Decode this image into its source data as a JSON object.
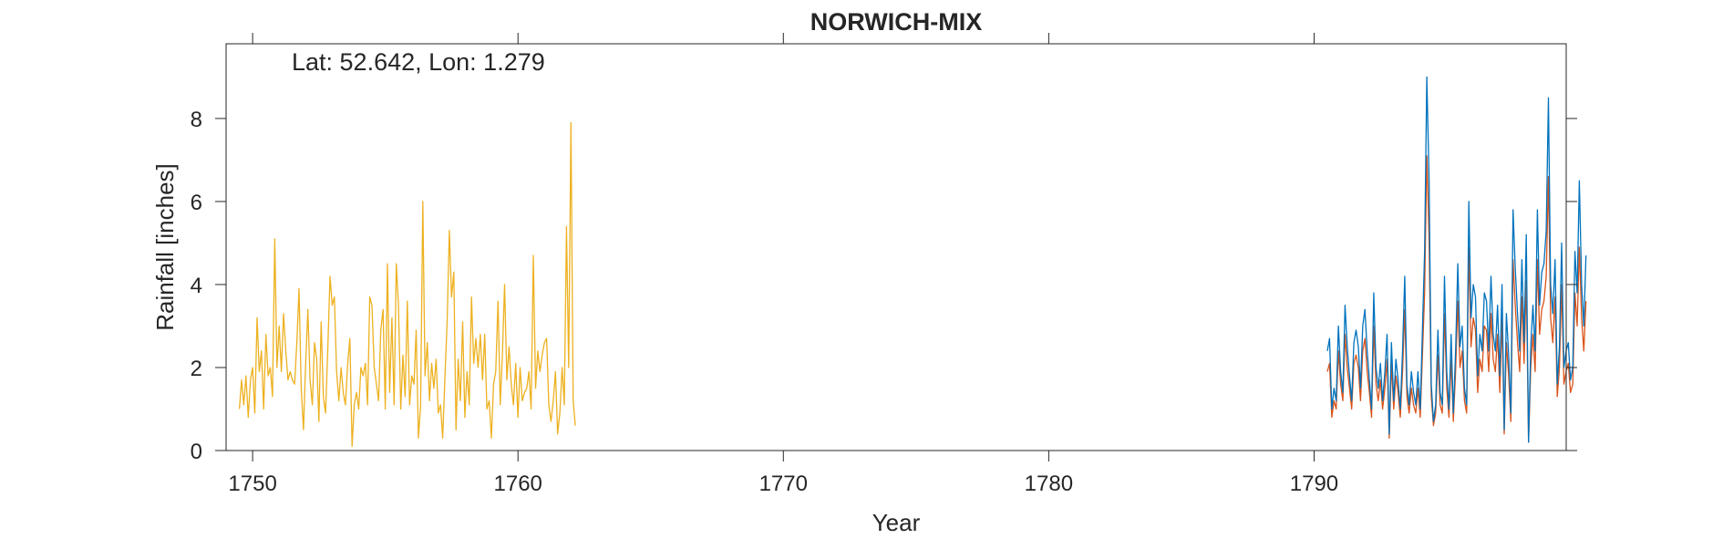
{
  "chart_data": {
    "type": "line",
    "title": "NORWICH-MIX",
    "xlabel": "Year",
    "ylabel": "Rainfall [inches]",
    "annotation": "Lat: 52.642, Lon: 1.279",
    "xlim": [
      1749,
      1799.5
    ],
    "ylim": [
      0,
      9.8
    ],
    "xticks": [
      1750,
      1760,
      1770,
      1780,
      1790
    ],
    "yticks": [
      0,
      2,
      4,
      6,
      8
    ],
    "grid": false,
    "legend": "none",
    "series": [
      {
        "color": "#EDB120",
        "x_start": 1749.5,
        "step": 0.0833,
        "values": [
          1.0,
          1.7,
          1.1,
          1.8,
          0.8,
          1.7,
          2.0,
          0.9,
          3.2,
          1.9,
          2.4,
          1.0,
          2.8,
          1.8,
          2.0,
          1.3,
          5.1,
          2.0,
          3.0,
          1.9,
          3.3,
          2.4,
          1.7,
          1.9,
          1.7,
          1.6,
          2.6,
          3.9,
          1.5,
          0.5,
          2.1,
          3.4,
          1.7,
          1.1,
          2.6,
          2.2,
          0.7,
          3.1,
          1.3,
          0.9,
          2.4,
          4.2,
          3.5,
          3.7,
          1.9,
          1.2,
          2.0,
          1.4,
          1.1,
          2.1,
          2.7,
          0.1,
          1.1,
          1.4,
          1.0,
          2.0,
          1.8,
          2.1,
          1.1,
          3.7,
          3.5,
          2.0,
          1.6,
          1.2,
          2.9,
          3.4,
          1.0,
          4.5,
          1.4,
          3.2,
          1.1,
          4.5,
          3.5,
          1.0,
          2.3,
          1.3,
          3.6,
          1.1,
          1.8,
          1.6,
          2.9,
          0.3,
          1.1,
          6.0,
          1.8,
          2.6,
          1.2,
          2.1,
          1.5,
          2.2,
          0.9,
          1.1,
          0.3,
          1.8,
          3.1,
          5.3,
          3.7,
          4.3,
          0.5,
          2.2,
          1.2,
          3.1,
          0.8,
          1.9,
          1.1,
          3.7,
          2.1,
          2.7,
          2.0,
          2.8,
          1.7,
          2.8,
          1.0,
          1.2,
          0.3,
          1.6,
          1.9,
          3.6,
          1.1,
          2.3,
          4.0,
          1.7,
          2.5,
          1.6,
          1.1,
          2.1,
          0.8,
          2.0,
          1.2,
          1.4,
          1.5,
          1.9,
          1.0,
          4.7,
          1.5,
          2.4,
          1.9,
          2.3,
          2.6,
          2.7,
          1.1,
          0.7,
          1.2,
          1.9,
          0.4,
          0.9,
          2.0,
          1.1,
          5.4,
          2.0,
          7.9,
          1.2,
          0.6
        ]
      },
      {
        "color": "#D95319",
        "x_start": 1790.5,
        "step": 0.0833,
        "values": [
          1.9,
          2.1,
          0.8,
          1.2,
          1.0,
          2.4,
          1.6,
          1.2,
          2.8,
          2.0,
          1.5,
          1.0,
          2.1,
          2.3,
          2.0,
          1.2,
          2.4,
          2.7,
          1.9,
          1.4,
          0.8,
          3.0,
          1.6,
          1.2,
          1.7,
          1.0,
          1.5,
          2.2,
          0.3,
          2.1,
          1.0,
          1.8,
          1.4,
          0.8,
          1.9,
          3.4,
          1.3,
          0.9,
          1.5,
          1.1,
          0.9,
          1.5,
          0.8,
          2.3,
          3.8,
          7.1,
          5.1,
          1.3,
          0.6,
          0.9,
          2.3,
          1.1,
          0.9,
          3.3,
          1.5,
          0.8,
          2.2,
          0.7,
          1.9,
          3.6,
          2.0,
          2.4,
          1.2,
          0.9,
          4.9,
          2.5,
          3.2,
          2.9,
          1.4,
          2.2,
          1.9,
          3.0,
          2.9,
          1.9,
          3.3,
          2.2,
          1.9,
          2.8,
          1.4,
          3.2,
          0.4,
          2.6,
          1.8,
          0.7,
          4.6,
          3.5,
          2.6,
          1.9,
          3.7,
          2.1,
          4.1,
          0.2,
          2.0,
          2.8,
          1.9,
          4.6,
          2.8,
          3.4,
          3.6,
          4.2,
          6.6,
          3.2,
          2.6,
          3.7,
          1.3,
          2.0,
          4.0,
          1.6,
          1.9,
          2.1,
          1.4,
          1.6,
          3.8,
          3.0,
          4.9,
          3.2,
          2.4,
          3.6
        ]
      },
      {
        "color": "#0072BD",
        "x_start": 1790.5,
        "step": 0.0833,
        "values": [
          2.4,
          2.7,
          1.0,
          1.5,
          1.2,
          3.0,
          1.9,
          1.4,
          3.5,
          2.5,
          1.8,
          1.2,
          2.6,
          2.9,
          2.5,
          1.5,
          3.0,
          3.4,
          2.4,
          1.7,
          1.0,
          3.8,
          2.0,
          1.5,
          2.1,
          1.2,
          1.9,
          2.8,
          0.4,
          2.6,
          1.2,
          2.2,
          1.7,
          1.0,
          2.4,
          4.2,
          1.6,
          1.1,
          1.9,
          1.4,
          1.1,
          1.9,
          1.0,
          2.9,
          4.8,
          9.0,
          6.5,
          1.6,
          0.7,
          1.1,
          2.9,
          1.4,
          1.1,
          4.2,
          1.9,
          1.0,
          2.8,
          0.9,
          2.4,
          4.5,
          2.5,
          3.0,
          1.5,
          1.1,
          6.0,
          3.2,
          4.0,
          3.7,
          1.8,
          2.8,
          2.4,
          3.8,
          3.6,
          2.4,
          4.2,
          2.8,
          2.4,
          3.5,
          1.8,
          4.0,
          0.5,
          3.3,
          2.3,
          0.9,
          5.8,
          4.4,
          3.3,
          2.4,
          4.6,
          2.6,
          5.2,
          0.2,
          2.5,
          3.5,
          2.4,
          5.8,
          3.5,
          4.3,
          4.5,
          5.3,
          8.5,
          4.0,
          3.3,
          4.6,
          1.6,
          2.5,
          5.0,
          2.0,
          2.4,
          2.6,
          1.7,
          2.0,
          4.8,
          3.8,
          6.5,
          4.0,
          3.0,
          4.7
        ]
      }
    ]
  }
}
